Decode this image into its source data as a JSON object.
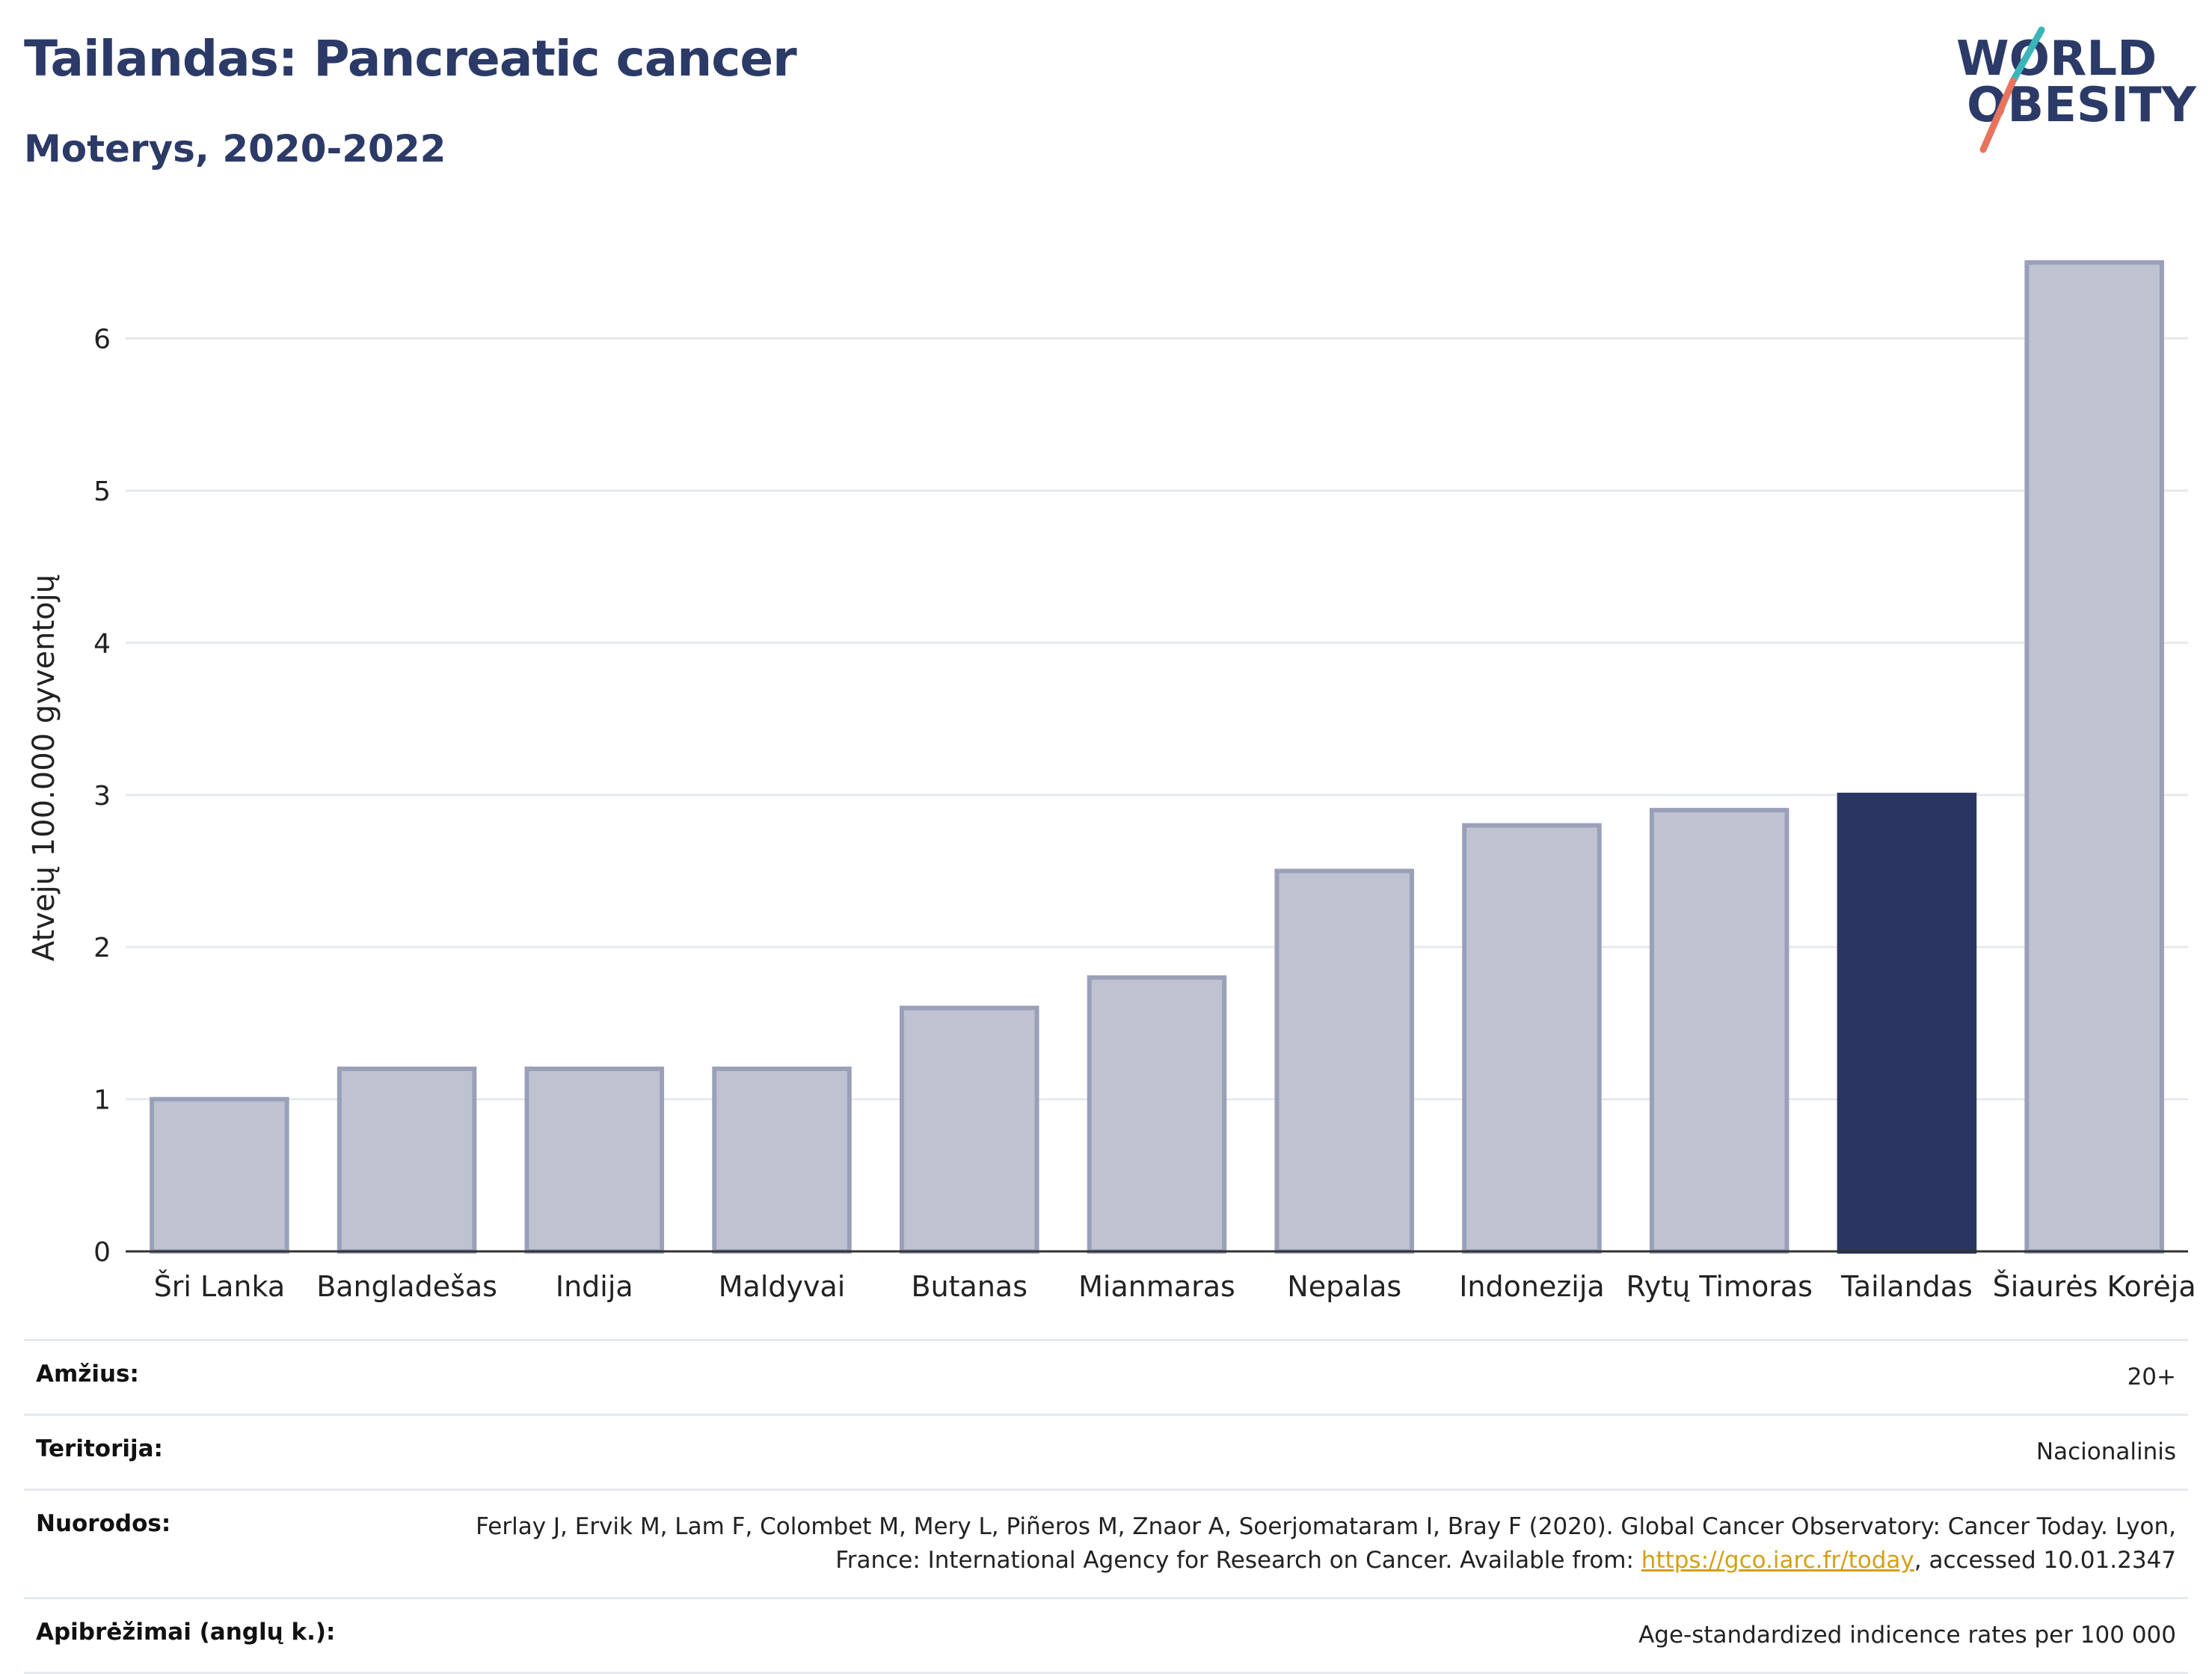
{
  "header": {
    "title": "Tailandas: Pancreatic cancer",
    "subtitle": "Moterys, 2020-2022"
  },
  "logo": {
    "line1": "WORLD",
    "line2": "OBESITY"
  },
  "chart_data": {
    "type": "bar",
    "categories": [
      "Šri Lanka",
      "Bangladešas",
      "Indija",
      "Maldyvai",
      "Butanas",
      "Mianmaras",
      "Nepalas",
      "Indonezija",
      "Rytų Timoras",
      "Tailandas",
      "Šiaurės Korėja"
    ],
    "values": [
      1.0,
      1.2,
      1.2,
      1.2,
      1.6,
      1.8,
      2.5,
      2.8,
      2.9,
      3.0,
      6.5
    ],
    "highlight": "Tailandas",
    "ylabel": "Atvejų 100.000 gyventojų",
    "xlabel": "",
    "ylim": [
      0,
      6.75
    ],
    "yticks": [
      0,
      1,
      2,
      3,
      4,
      5,
      6
    ],
    "grid": true,
    "colors": {
      "bar": "#bfc3d1",
      "bar_border": "#9aa0b8",
      "highlight": "#2b3561",
      "grid": "#e6e9ef",
      "axis": "#333333"
    }
  },
  "info": {
    "age_label": "Amžius:",
    "age_value": "20+",
    "territory_label": "Teritorija:",
    "territory_value": "Nacionalinis",
    "refs_label": "Nuorodos:",
    "refs_text_1": "Ferlay J, Ervik M, Lam F, Colombet M, Mery L, Piñeros M, Znaor A, Soerjomataram I, Bray F (2020). Global Cancer Observatory: Cancer Today. Lyon, France: International Agency for Research on Cancer. Available from: ",
    "refs_link": "https://gco.iarc.fr/today",
    "refs_text_2": ", accessed 10.01.2347",
    "def_label": "Apibrėžimai (anglų k.):",
    "def_value": "Age-standardized indicence rates per 100 000"
  }
}
